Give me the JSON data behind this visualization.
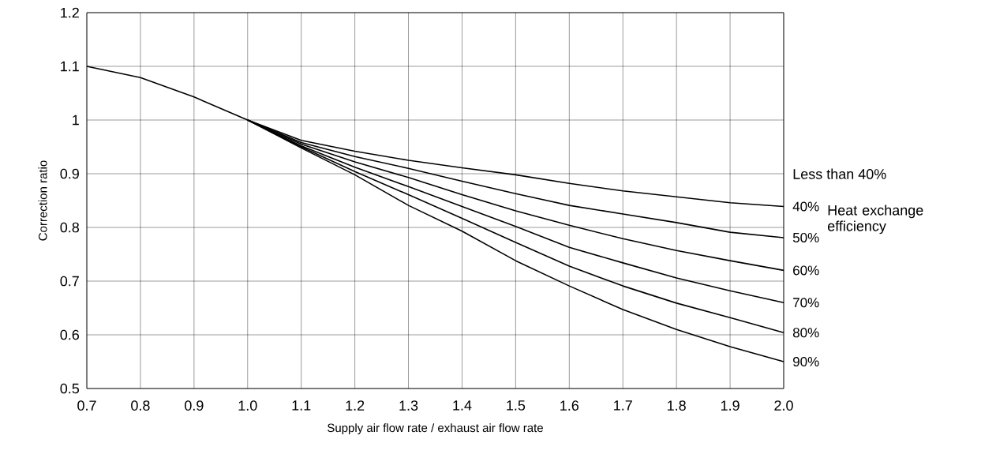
{
  "chart_data": {
    "type": "line",
    "xlabel": "Supply air flow rate / exhaust air flow rate",
    "ylabel": "Correction ratio",
    "xlim": [
      0.7,
      2.0
    ],
    "ylim": [
      0.5,
      1.2
    ],
    "xticks": [
      0.7,
      0.8,
      0.9,
      {
        "value": 1.0,
        "label": "1.0"
      },
      1.1,
      1.2,
      1.3,
      1.4,
      1.5,
      1.6,
      1.7,
      1.8,
      1.9,
      {
        "value": 2.0,
        "label": "2.0"
      }
    ],
    "yticks": [
      0.5,
      0.6,
      0.7,
      0.8,
      0.9,
      1,
      1.1,
      1.2
    ],
    "grid": true,
    "annotations": [
      "Less than 40%",
      "Heat exchange efficiency"
    ],
    "series": [
      {
        "name": "40%",
        "color": "#000000",
        "x": [
          0.7,
          0.8,
          0.9,
          1.0,
          1.1,
          1.2,
          1.3,
          1.4,
          1.5,
          1.6,
          1.7,
          1.8,
          1.9,
          2.0
        ],
        "values": [
          1.1,
          1.079,
          1.043,
          1.0,
          0.962,
          0.942,
          0.925,
          0.911,
          0.898,
          0.882,
          0.868,
          0.857,
          0.846,
          0.839
        ]
      },
      {
        "name": "50%",
        "color": "#000000",
        "x": [
          1.0,
          1.1,
          1.2,
          1.3,
          1.4,
          1.5,
          1.6,
          1.7,
          1.8,
          1.9,
          2.0
        ],
        "values": [
          1.0,
          0.958,
          0.932,
          0.91,
          0.886,
          0.863,
          0.841,
          0.825,
          0.809,
          0.791,
          0.781
        ]
      },
      {
        "name": "60%",
        "color": "#000000",
        "x": [
          1.0,
          1.1,
          1.2,
          1.3,
          1.4,
          1.5,
          1.6,
          1.7,
          1.8,
          1.9,
          2.0
        ],
        "values": [
          1.0,
          0.955,
          0.922,
          0.893,
          0.861,
          0.831,
          0.804,
          0.779,
          0.757,
          0.738,
          0.72
        ]
      },
      {
        "name": "70%",
        "color": "#000000",
        "x": [
          1.0,
          1.1,
          1.2,
          1.3,
          1.4,
          1.5,
          1.6,
          1.7,
          1.8,
          1.9,
          2.0
        ],
        "values": [
          1.0,
          0.952,
          0.912,
          0.876,
          0.839,
          0.802,
          0.763,
          0.734,
          0.706,
          0.682,
          0.66
        ]
      },
      {
        "name": "80%",
        "color": "#000000",
        "x": [
          1.0,
          1.1,
          1.2,
          1.3,
          1.4,
          1.5,
          1.6,
          1.7,
          1.8,
          1.9,
          2.0
        ],
        "values": [
          1.0,
          0.95,
          0.904,
          0.861,
          0.817,
          0.772,
          0.728,
          0.691,
          0.659,
          0.632,
          0.604
        ]
      },
      {
        "name": "90%",
        "color": "#000000",
        "x": [
          1.0,
          1.1,
          1.2,
          1.3,
          1.4,
          1.5,
          1.6,
          1.7,
          1.8,
          1.9,
          2.0
        ],
        "values": [
          1.0,
          0.948,
          0.898,
          0.841,
          0.793,
          0.738,
          0.691,
          0.647,
          0.61,
          0.578,
          0.55
        ]
      }
    ]
  }
}
